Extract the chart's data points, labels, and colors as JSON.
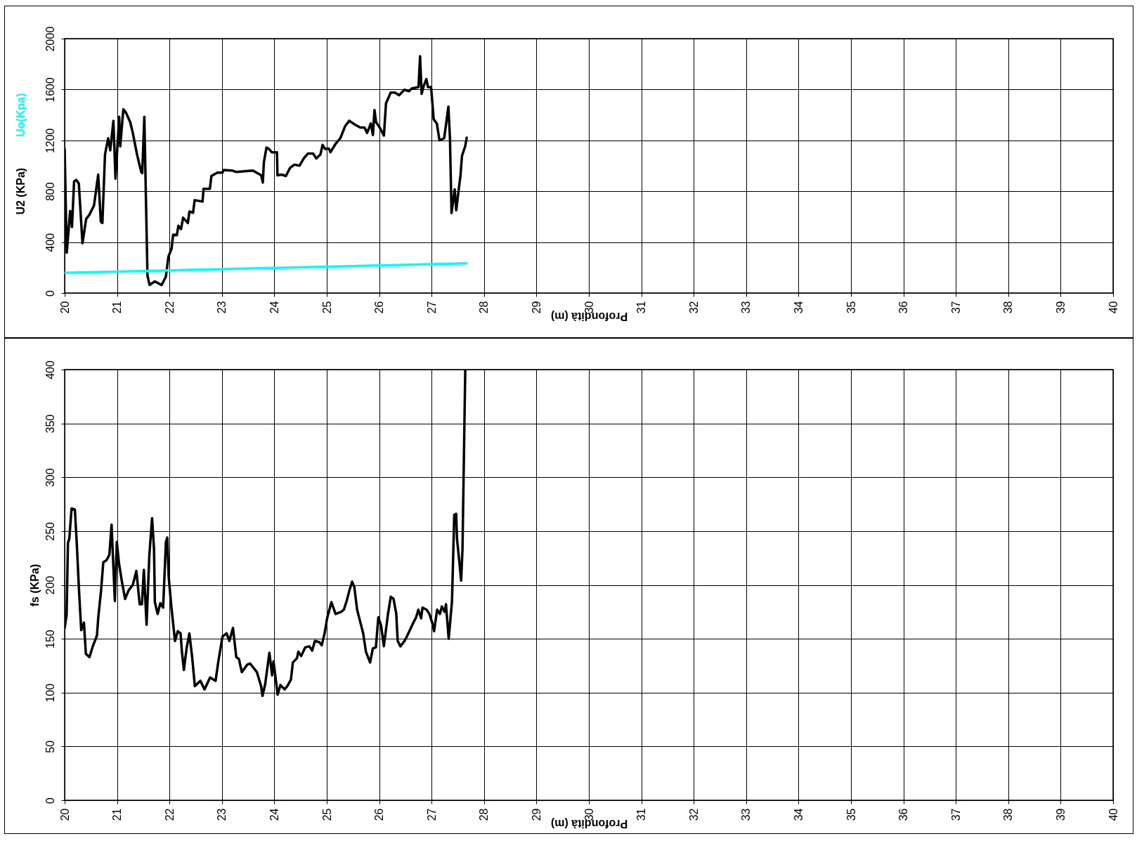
{
  "chart_data": [
    {
      "type": "line",
      "xlabel": "Profondità (m)",
      "xlim": [
        20,
        40
      ],
      "xticks": [
        20,
        21,
        22,
        23,
        24,
        25,
        26,
        27,
        28,
        29,
        30,
        31,
        32,
        33,
        34,
        35,
        36,
        37,
        38,
        39,
        40
      ],
      "ylim": [
        0,
        2000
      ],
      "yticks": [
        0,
        400,
        800,
        1200,
        1600,
        2000
      ],
      "grid": true,
      "series": [
        {
          "name": "U2 (KPa)",
          "color": "#000000",
          "x": [
            20.0,
            20.04,
            20.105,
            20.14,
            20.18,
            20.22,
            20.27,
            20.34,
            20.41,
            20.47,
            20.56,
            20.64,
            20.69,
            20.72,
            20.77,
            20.83,
            20.87,
            20.93,
            20.97,
            21.04,
            21.06,
            21.12,
            21.17,
            21.25,
            21.3,
            21.38,
            21.46,
            21.48,
            21.52,
            21.55,
            21.58,
            21.62,
            21.72,
            21.85,
            21.93,
            21.98,
            22.04,
            22.07,
            22.14,
            22.17,
            22.22,
            22.26,
            22.35,
            22.38,
            22.45,
            22.48,
            22.63,
            22.65,
            22.77,
            22.8,
            22.91,
            23.01,
            23.03,
            23.19,
            23.27,
            23.59,
            23.75,
            23.78,
            23.8,
            23.85,
            23.9,
            23.95,
            24.05,
            24.06,
            24.14,
            24.22,
            24.3,
            24.38,
            24.48,
            24.56,
            24.64,
            24.74,
            24.8,
            24.88,
            24.92,
            24.97,
            25.04,
            25.07,
            25.17,
            25.26,
            25.35,
            25.43,
            25.54,
            25.64,
            25.72,
            25.77,
            25.84,
            25.88,
            25.91,
            25.94,
            26.01,
            26.09,
            26.13,
            26.22,
            26.3,
            26.38,
            26.48,
            26.57,
            26.62,
            26.75,
            26.78,
            26.81,
            26.85,
            26.9,
            26.93,
            26.99,
            27.04,
            27.1,
            27.15,
            27.24,
            27.32,
            27.35,
            27.38,
            27.44,
            27.47,
            27.52,
            27.55,
            27.58,
            27.64,
            27.67
          ],
          "values": [
            1132,
            317,
            645,
            519,
            878,
            889,
            861,
            391,
            582,
            614,
            688,
            931,
            561,
            550,
            1090,
            1217,
            1121,
            1354,
            899,
            1386,
            1153,
            1445,
            1418,
            1344,
            1259,
            1090,
            952,
            942,
            1386,
            751,
            138,
            63,
            91,
            63,
            127,
            286,
            349,
            459,
            455,
            529,
            502,
            592,
            550,
            641,
            631,
            730,
            719,
            819,
            819,
            920,
            946,
            946,
            967,
            963,
            952,
            963,
            925,
            868,
            1026,
            1143,
            1132,
            1107,
            1107,
            925,
            931,
            920,
            984,
            1009,
            1001,
            1058,
            1096,
            1096,
            1058,
            1090,
            1164,
            1132,
            1136,
            1107,
            1174,
            1217,
            1312,
            1354,
            1323,
            1301,
            1301,
            1259,
            1333,
            1242,
            1439,
            1344,
            1301,
            1238,
            1492,
            1576,
            1576,
            1555,
            1598,
            1587,
            1608,
            1619,
            1862,
            1566,
            1629,
            1682,
            1619,
            1619,
            1365,
            1333,
            1200,
            1217,
            1466,
            1217,
            628,
            815,
            650,
            825,
            920,
            1079,
            1153,
            1221
          ]
        },
        {
          "name": "Uo(Kpa)",
          "color": "#00ffff",
          "x": [
            20.0,
            27.67
          ],
          "values": [
            159,
            233
          ]
        }
      ]
    },
    {
      "type": "line",
      "xlabel": "Profondità (m)",
      "ylabel": "fs (KPa)",
      "xlim": [
        20,
        40
      ],
      "xticks": [
        20,
        21,
        22,
        23,
        24,
        25,
        26,
        27,
        28,
        29,
        30,
        31,
        32,
        33,
        34,
        35,
        36,
        37,
        38,
        39,
        40
      ],
      "ylim": [
        0,
        400
      ],
      "yticks": [
        0,
        50,
        100,
        150,
        200,
        250,
        300,
        350,
        400
      ],
      "grid": true,
      "series": [
        {
          "color": "#000000",
          "x": [
            20.0,
            20.037,
            20.063,
            20.089,
            20.132,
            20.195,
            20.232,
            20.274,
            20.316,
            20.368,
            20.405,
            20.474,
            20.537,
            20.616,
            20.642,
            20.695,
            20.737,
            20.8,
            20.853,
            20.895,
            20.958,
            20.995,
            21.037,
            21.089,
            21.153,
            21.221,
            21.3,
            21.368,
            21.432,
            21.474,
            21.511,
            21.563,
            21.616,
            21.668,
            21.705,
            21.721,
            21.774,
            21.826,
            21.879,
            21.932,
            21.958,
            21.984,
            22.037,
            22.105,
            22.158,
            22.211,
            22.237,
            22.274,
            22.326,
            22.379,
            22.432,
            22.484,
            22.589,
            22.668,
            22.774,
            22.879,
            22.932,
            23.011,
            23.089,
            23.142,
            23.211,
            23.274,
            23.326,
            23.379,
            23.484,
            23.537,
            23.668,
            23.747,
            23.774,
            23.826,
            23.905,
            23.958,
            23.984,
            24.063,
            24.116,
            24.195,
            24.247,
            24.316,
            24.353,
            24.432,
            24.458,
            24.511,
            24.589,
            24.668,
            24.721,
            24.774,
            24.853,
            24.905,
            24.958,
            25.011,
            25.089,
            25.168,
            25.274,
            25.326,
            25.379,
            25.432,
            25.484,
            25.526,
            25.579,
            25.642,
            25.695,
            25.747,
            25.826,
            25.879,
            25.937,
            25.984,
            26.037,
            26.089,
            26.168,
            26.221,
            26.274,
            26.326,
            26.353,
            26.405,
            26.484,
            26.537,
            26.642,
            26.705,
            26.747,
            26.8,
            26.826,
            26.905,
            26.958,
            27.011,
            27.047,
            27.105,
            27.158,
            27.195,
            27.247,
            27.274,
            27.326,
            27.389,
            27.432,
            27.468,
            27.484,
            27.526,
            27.563,
            27.589,
            27.642
          ],
          "values": [
            160,
            172,
            239,
            243,
            271,
            270,
            238,
            195,
            158,
            165,
            136,
            133,
            143,
            153,
            170,
            195,
            221,
            223,
            228,
            256,
            185,
            240,
            220,
            204,
            187,
            195,
            200,
            213,
            182,
            182,
            214,
            163,
            228,
            262,
            233,
            184,
            173,
            183,
            179,
            240,
            244,
            208,
            179,
            148,
            157,
            155,
            138,
            121,
            141,
            155,
            133,
            106,
            111,
            103,
            114,
            111,
            129,
            152,
            155,
            148,
            160,
            133,
            131,
            119,
            126,
            127,
            119,
            106,
            97,
            108,
            137,
            116,
            129,
            98,
            107,
            103,
            106,
            112,
            128,
            132,
            138,
            134,
            142,
            143,
            139,
            148,
            147,
            144,
            155,
            170,
            184,
            173,
            175,
            177,
            185,
            195,
            203,
            198,
            177,
            165,
            155,
            138,
            128,
            141,
            142,
            170,
            162,
            143,
            173,
            189,
            187,
            173,
            148,
            143,
            148,
            153,
            164,
            170,
            177,
            169,
            179,
            177,
            173,
            165,
            157,
            177,
            173,
            180,
            175,
            182,
            150,
            185,
            265,
            266,
            243,
            223,
            204,
            233,
            400
          ]
        }
      ]
    }
  ]
}
